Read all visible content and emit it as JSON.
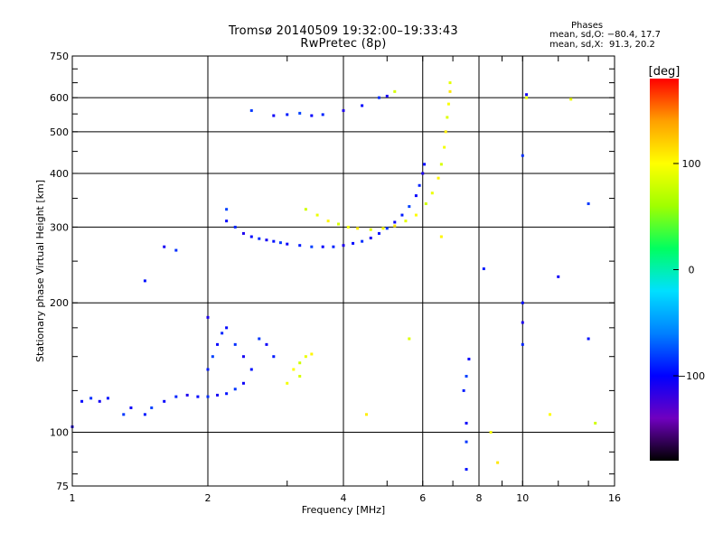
{
  "title": "Tromsø 20140509 19:32:00–19:33:43",
  "subtitle": "RwPretec (8p)",
  "phases": {
    "heading": "Phases",
    "line1": "mean, sd,O: −80.4, 17.7",
    "line2": "mean, sd,X:  91.3, 20.2"
  },
  "colorbar": {
    "label": "[deg]",
    "ticks": [
      "100",
      "0",
      "−100"
    ],
    "tick_values": [
      100,
      0,
      -100
    ],
    "range": [
      -180,
      180
    ],
    "palette": [
      "#000000",
      "#7000c0",
      "#0000ff",
      "#0080ff",
      "#00e0ff",
      "#00ff60",
      "#a0ff00",
      "#ffff00",
      "#ffa000",
      "#ff0000"
    ]
  },
  "chart_data": {
    "type": "scatter",
    "xlabel": "Frequency [MHz]",
    "ylabel": "Stationary phase Virtual Height [km]",
    "xscale": "log",
    "yscale": "log",
    "xlim": [
      1,
      16
    ],
    "ylim": [
      75,
      750
    ],
    "x_ticks": [
      1,
      2,
      4,
      6,
      8,
      10,
      16
    ],
    "x_tick_labels": [
      "1",
      "2",
      "4",
      "6",
      "8",
      "10",
      "16"
    ],
    "y_ticks": [
      75,
      100,
      200,
      300,
      400,
      500,
      600,
      750
    ],
    "y_tick_labels": [
      "75",
      "100",
      "200",
      "300",
      "400",
      "500",
      "600",
      "750"
    ],
    "grid": true,
    "series": [
      {
        "mode": "O",
        "phase": -95,
        "points": [
          [
            1.0,
            103
          ],
          [
            1.05,
            118
          ],
          [
            1.1,
            120
          ],
          [
            1.15,
            118
          ],
          [
            1.2,
            120
          ],
          [
            1.3,
            110
          ],
          [
            1.35,
            114
          ],
          [
            1.45,
            110
          ],
          [
            1.5,
            114
          ],
          [
            1.6,
            118
          ],
          [
            1.7,
            121
          ],
          [
            1.8,
            122
          ],
          [
            1.9,
            121
          ],
          [
            2.0,
            121
          ],
          [
            2.1,
            122
          ],
          [
            2.2,
            123
          ],
          [
            2.3,
            126
          ],
          [
            2.4,
            130
          ],
          [
            2.0,
            140
          ],
          [
            2.05,
            150
          ],
          [
            2.1,
            160
          ],
          [
            2.15,
            170
          ],
          [
            2.0,
            185
          ],
          [
            2.2,
            175
          ],
          [
            2.3,
            160
          ],
          [
            2.4,
            150
          ],
          [
            2.5,
            140
          ],
          [
            2.6,
            165
          ],
          [
            2.7,
            160
          ],
          [
            2.8,
            150
          ],
          [
            2.2,
            330
          ],
          [
            2.2,
            310
          ],
          [
            2.3,
            300
          ],
          [
            2.4,
            290
          ],
          [
            2.5,
            285
          ],
          [
            2.6,
            282
          ],
          [
            2.7,
            280
          ],
          [
            2.8,
            278
          ],
          [
            2.9,
            276
          ],
          [
            3.0,
            274
          ],
          [
            3.2,
            272
          ],
          [
            3.4,
            270
          ],
          [
            3.6,
            270
          ],
          [
            3.8,
            270
          ],
          [
            4.0,
            272
          ],
          [
            4.2,
            275
          ],
          [
            4.4,
            278
          ],
          [
            4.6,
            283
          ],
          [
            4.8,
            290
          ],
          [
            5.0,
            298
          ],
          [
            5.2,
            308
          ],
          [
            5.4,
            320
          ],
          [
            5.6,
            335
          ],
          [
            5.8,
            355
          ],
          [
            5.9,
            375
          ],
          [
            6.0,
            400
          ],
          [
            6.05,
            420
          ],
          [
            1.7,
            265
          ],
          [
            1.6,
            270
          ],
          [
            1.45,
            225
          ],
          [
            2.5,
            560
          ],
          [
            2.8,
            545
          ],
          [
            3.0,
            548
          ],
          [
            3.2,
            552
          ],
          [
            3.4,
            545
          ],
          [
            3.6,
            548
          ],
          [
            4.0,
            560
          ],
          [
            4.4,
            575
          ],
          [
            4.8,
            600
          ],
          [
            5.0,
            605
          ],
          [
            7.5,
            82
          ],
          [
            7.5,
            95
          ],
          [
            7.5,
            105
          ],
          [
            7.4,
            125
          ],
          [
            7.5,
            135
          ],
          [
            7.6,
            148
          ],
          [
            10.0,
            160
          ],
          [
            10.0,
            180
          ],
          [
            10.0,
            200
          ],
          [
            10.0,
            440
          ],
          [
            10.2,
            610
          ],
          [
            14.0,
            165
          ],
          [
            14.0,
            340
          ],
          [
            12.0,
            230
          ],
          [
            8.2,
            240
          ]
        ]
      },
      {
        "mode": "X",
        "phase": 95,
        "points": [
          [
            3.3,
            330
          ],
          [
            3.5,
            320
          ],
          [
            3.7,
            310
          ],
          [
            3.9,
            305
          ],
          [
            4.1,
            300
          ],
          [
            4.3,
            298
          ],
          [
            4.6,
            296
          ],
          [
            4.9,
            298
          ],
          [
            5.2,
            302
          ],
          [
            5.5,
            310
          ],
          [
            5.8,
            320
          ],
          [
            6.1,
            340
          ],
          [
            6.3,
            360
          ],
          [
            6.5,
            390
          ],
          [
            6.6,
            420
          ],
          [
            6.7,
            460
          ],
          [
            6.75,
            500
          ],
          [
            6.8,
            540
          ],
          [
            6.85,
            580
          ],
          [
            6.9,
            620
          ],
          [
            6.9,
            650
          ],
          [
            3.1,
            140
          ],
          [
            3.2,
            145
          ],
          [
            3.3,
            150
          ],
          [
            3.4,
            152
          ],
          [
            3.2,
            135
          ],
          [
            3.0,
            130
          ],
          [
            4.5,
            110
          ],
          [
            5.6,
            165
          ],
          [
            8.5,
            100
          ],
          [
            8.8,
            85
          ],
          [
            10.2,
            600
          ],
          [
            11.5,
            110
          ],
          [
            14.5,
            105
          ],
          [
            12.8,
            595
          ],
          [
            6.6,
            285
          ],
          [
            5.2,
            620
          ]
        ]
      }
    ]
  }
}
